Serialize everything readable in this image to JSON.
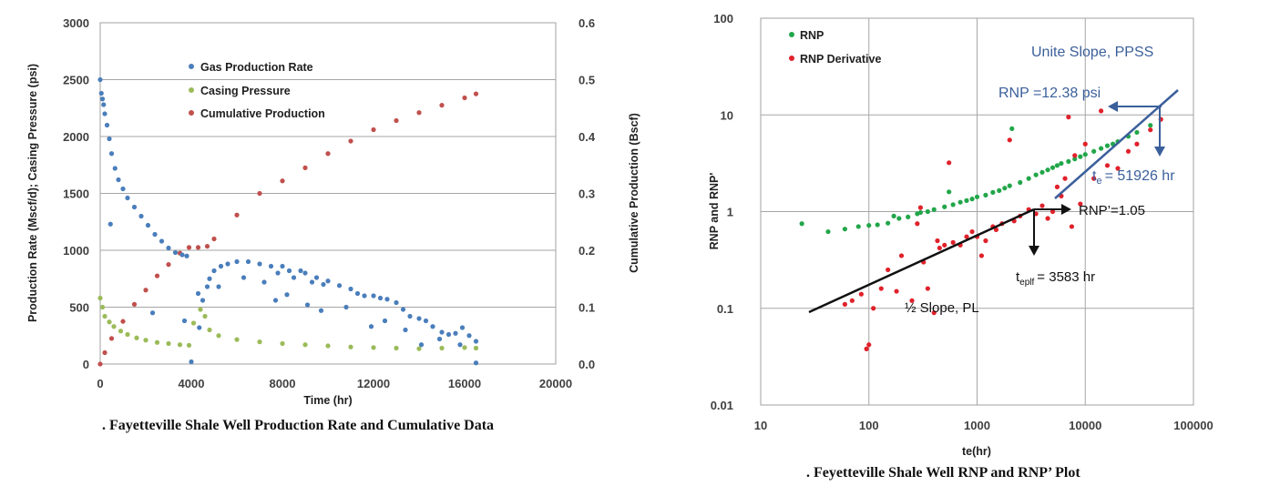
{
  "chart_data": [
    {
      "type": "scatter",
      "title": "",
      "xlabel": "Time (hr)",
      "ylabel": "Production Rate (Mscf/d); Casing Pressure (psi)",
      "y2label": "Cumulative Production (Bscf)",
      "xlim": [
        0,
        20000
      ],
      "ylim": [
        0,
        3000
      ],
      "y2lim": [
        0,
        0.6
      ],
      "x_ticks": [
        "0",
        "4000",
        "8000",
        "12000",
        "16000",
        "20000"
      ],
      "y_ticks": [
        "0",
        "500",
        "1000",
        "1500",
        "2000",
        "2500",
        "3000"
      ],
      "y2_ticks": [
        "0.0",
        "0.1",
        "0.2",
        "0.3",
        "0.4",
        "0.5",
        "0.6"
      ],
      "grid": true,
      "legend_position": "top-center",
      "colors": {
        "gas": "#4a7ebb",
        "casing": "#9bbb59",
        "cumulative": "#c0504d"
      },
      "series": [
        {
          "name": "Gas Production Rate",
          "axis": "left",
          "x": [
            0,
            50,
            100,
            150,
            200,
            300,
            400,
            500,
            650,
            800,
            1000,
            1200,
            1500,
            1800,
            2100,
            2400,
            2700,
            3000,
            3300,
            3600,
            3800,
            4300,
            4500,
            4700,
            4800,
            5000,
            5300,
            5600,
            6000,
            6500,
            7000,
            7500,
            7800,
            8000,
            8300,
            8500,
            8800,
            9000,
            9300,
            9500,
            9800,
            10000,
            10500,
            11000,
            11300,
            11600,
            12000,
            12300,
            12600,
            13000,
            13300,
            13600,
            14000,
            14300,
            14600,
            15000,
            15300,
            15600,
            15900,
            16200,
            16500
          ],
          "values": [
            2500,
            2380,
            2330,
            2280,
            2200,
            2100,
            1980,
            1850,
            1720,
            1620,
            1540,
            1460,
            1380,
            1300,
            1220,
            1140,
            1080,
            1020,
            980,
            960,
            950,
            620,
            560,
            680,
            750,
            820,
            860,
            880,
            900,
            900,
            880,
            860,
            800,
            860,
            820,
            760,
            820,
            800,
            720,
            760,
            700,
            730,
            690,
            660,
            620,
            600,
            600,
            580,
            570,
            540,
            480,
            420,
            400,
            380,
            330,
            280,
            260,
            270,
            320,
            250,
            200
          ],
          "scatter_low_x": [
            450,
            2300,
            3700,
            4000,
            4350,
            5200,
            6300,
            7200,
            7700,
            8200,
            9100,
            9700,
            10800,
            11900,
            12500,
            13400,
            14100,
            14900,
            15800,
            16500
          ],
          "scatter_low_y": [
            1230,
            450,
            380,
            20,
            320,
            680,
            760,
            720,
            560,
            610,
            520,
            470,
            500,
            330,
            380,
            300,
            170,
            220,
            170,
            10
          ]
        },
        {
          "name": "Casing Pressure",
          "axis": "left",
          "x": [
            0,
            100,
            200,
            400,
            600,
            900,
            1200,
            1600,
            2000,
            2500,
            3000,
            3500,
            3900,
            4100,
            4400,
            4600,
            4800,
            5200,
            6000,
            7000,
            8000,
            9000,
            10000,
            11000,
            12000,
            13000,
            14000,
            15000,
            16000,
            16500
          ],
          "values": [
            580,
            500,
            420,
            370,
            330,
            290,
            260,
            230,
            210,
            190,
            180,
            170,
            165,
            360,
            480,
            420,
            300,
            250,
            215,
            195,
            180,
            170,
            160,
            150,
            145,
            140,
            135,
            140,
            145,
            140
          ]
        },
        {
          "name": "Cumulative Production",
          "axis": "right",
          "x": [
            0,
            200,
            500,
            1000,
            1500,
            2000,
            2500,
            3000,
            3500,
            3900,
            4300,
            4700,
            5000,
            6000,
            7000,
            8000,
            9000,
            10000,
            11000,
            12000,
            13000,
            14000,
            15000,
            16000,
            16500
          ],
          "values": [
            0.0,
            0.02,
            0.045,
            0.075,
            0.105,
            0.13,
            0.155,
            0.175,
            0.195,
            0.205,
            0.205,
            0.207,
            0.22,
            0.262,
            0.3,
            0.322,
            0.345,
            0.37,
            0.392,
            0.412,
            0.428,
            0.442,
            0.455,
            0.468,
            0.475
          ]
        }
      ],
      "caption": ". Fayetteville Shale Well Production Rate and Cumulative Data"
    },
    {
      "type": "scatter",
      "scale": "log-log",
      "title": "",
      "xlabel": "te(hr)",
      "ylabel": "RNP and RNP'",
      "xlim": [
        10,
        100000
      ],
      "ylim": [
        0.01,
        100
      ],
      "x_ticks": [
        "10",
        "100",
        "1000",
        "10000",
        "100000"
      ],
      "y_ticks": [
        "0.01",
        "0.1",
        "1",
        "10",
        "100"
      ],
      "grid": true,
      "legend_position": "top-left",
      "colors": {
        "rnp": "#22a64a",
        "derivative": "#e0212b",
        "lines": "#3b5f9b"
      },
      "series": [
        {
          "name": "RNP",
          "x": [
            24,
            42,
            60,
            80,
            100,
            120,
            150,
            170,
            190,
            230,
            280,
            300,
            350,
            400,
            500,
            550,
            600,
            700,
            800,
            900,
            1000,
            1200,
            1400,
            1600,
            1800,
            2000,
            2100,
            2500,
            3000,
            3500,
            4000,
            4500,
            5000,
            5500,
            6000,
            7000,
            8000,
            9000,
            10000,
            12000,
            14000,
            16000,
            18000,
            20000,
            25000,
            30000,
            40000
          ],
          "values": [
            0.75,
            0.62,
            0.66,
            0.7,
            0.72,
            0.73,
            0.76,
            0.9,
            0.85,
            0.88,
            0.95,
            0.98,
            1.0,
            1.05,
            1.12,
            1.6,
            1.18,
            1.25,
            1.3,
            1.35,
            1.42,
            1.48,
            1.58,
            1.65,
            1.75,
            1.85,
            7.2,
            2.0,
            2.2,
            2.4,
            2.55,
            2.7,
            2.85,
            3.0,
            3.15,
            3.3,
            3.5,
            3.7,
            3.9,
            4.2,
            4.5,
            4.8,
            5.0,
            5.3,
            6.0,
            6.6,
            7.8
          ]
        },
        {
          "name": "RNP Derivative",
          "x": [
            60,
            70,
            85,
            95,
            100,
            110,
            130,
            150,
            180,
            200,
            250,
            280,
            300,
            320,
            350,
            400,
            430,
            450,
            500,
            550,
            600,
            700,
            800,
            900,
            1000,
            1100,
            1200,
            1400,
            1500,
            1700,
            2000,
            2200,
            2500,
            3000,
            3500,
            4000,
            4500,
            5000,
            5500,
            6000,
            6500,
            7000,
            7500,
            8000,
            9000,
            10000,
            12000,
            14000,
            16000,
            20000,
            25000,
            30000,
            40000,
            50000
          ],
          "values": [
            0.11,
            0.12,
            0.14,
            0.038,
            0.042,
            0.1,
            0.16,
            0.25,
            0.15,
            0.35,
            0.12,
            0.75,
            1.1,
            0.3,
            0.16,
            0.09,
            0.5,
            0.42,
            0.45,
            3.2,
            0.48,
            0.45,
            0.55,
            0.62,
            0.55,
            0.35,
            0.5,
            0.7,
            0.65,
            0.75,
            5.5,
            0.8,
            0.9,
            1.05,
            0.95,
            1.15,
            0.85,
            1.0,
            1.8,
            1.45,
            2.2,
            9.5,
            0.7,
            3.8,
            1.2,
            5.0,
            2.2,
            11.0,
            3.0,
            2.8,
            4.2,
            5.0,
            7.0,
            9.0
          ]
        }
      ],
      "annotations": {
        "unit_slope": "Unite Slope, PPSS",
        "rnp_value": "RNP =12.38 psi",
        "te_label": "t",
        "te_sub": "e",
        "te_value": "= 51926 hr",
        "rnp_prime": "RNP’=1.05",
        "teplf_label": "t",
        "teplf_sub": "eplf",
        "teplf_value": "= 3583 hr",
        "half_slope": "½ Slope, PL"
      },
      "caption": ". Feyetteville Shale Well RNP and RNP’ Plot"
    }
  ]
}
